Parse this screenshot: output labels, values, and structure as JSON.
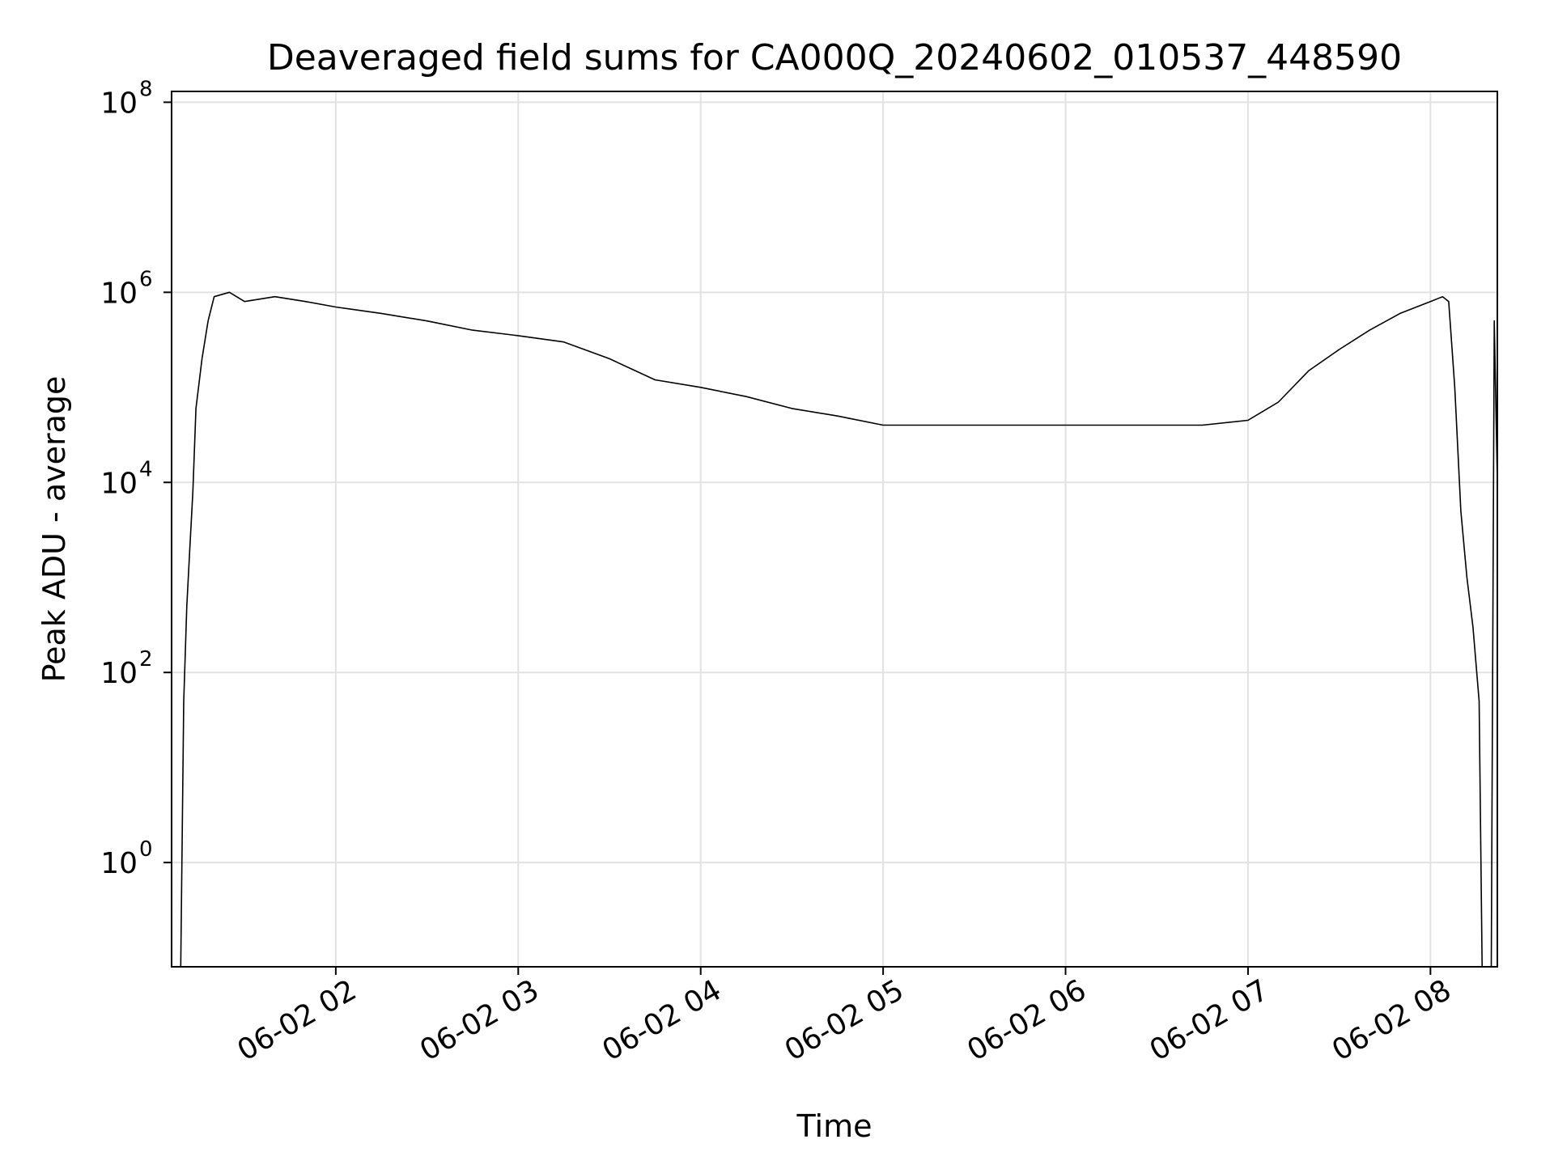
{
  "chart_data": {
    "type": "line",
    "title": "Deaveraged field sums for CA000Q_20240602_010537_448590",
    "xlabel": "Time",
    "ylabel": "Peak ADU - average",
    "yscale": "log",
    "grid": true,
    "xlim": [
      "2024-06-02 01:06",
      "2024-06-02 08:22"
    ],
    "ylim": [
      0.08,
      130000000
    ],
    "x_ticks": [
      {
        "value": "2024-06-02 02:00",
        "label": "06-02 02"
      },
      {
        "value": "2024-06-02 03:00",
        "label": "06-02 03"
      },
      {
        "value": "2024-06-02 04:00",
        "label": "06-02 04"
      },
      {
        "value": "2024-06-02 05:00",
        "label": "06-02 05"
      },
      {
        "value": "2024-06-02 06:00",
        "label": "06-02 06"
      },
      {
        "value": "2024-06-02 07:00",
        "label": "06-02 07"
      },
      {
        "value": "2024-06-02 08:00",
        "label": "06-02 08"
      }
    ],
    "y_ticks": [
      {
        "value": 1,
        "base": "10",
        "exp": "0"
      },
      {
        "value": 100,
        "base": "10",
        "exp": "2"
      },
      {
        "value": 10000,
        "base": "10",
        "exp": "4"
      },
      {
        "value": 1000000,
        "base": "10",
        "exp": "6"
      },
      {
        "value": 100000000,
        "base": "10",
        "exp": "8"
      }
    ],
    "line_color": "#000000",
    "series": [
      {
        "x": [
          "2024-06-02 01:09",
          "2024-06-02 01:10",
          "2024-06-02 01:11",
          "2024-06-02 01:12",
          "2024-06-02 01:13",
          "2024-06-02 01:14",
          "2024-06-02 01:16",
          "2024-06-02 01:18",
          "2024-06-02 01:20",
          "2024-06-02 01:25",
          "2024-06-02 01:30",
          "2024-06-02 01:40",
          "2024-06-02 01:50",
          "2024-06-02 02:00",
          "2024-06-02 02:15",
          "2024-06-02 02:30",
          "2024-06-02 02:45",
          "2024-06-02 03:00",
          "2024-06-02 03:15",
          "2024-06-02 03:30",
          "2024-06-02 03:45",
          "2024-06-02 04:00",
          "2024-06-02 04:15",
          "2024-06-02 04:30",
          "2024-06-02 04:45",
          "2024-06-02 05:00",
          "2024-06-02 05:15",
          "2024-06-02 05:30",
          "2024-06-02 05:34",
          "2024-06-02 05:45",
          "2024-06-02 06:00",
          "2024-06-02 06:15",
          "2024-06-02 06:30",
          "2024-06-02 06:45",
          "2024-06-02 07:00",
          "2024-06-02 07:10",
          "2024-06-02 07:20",
          "2024-06-02 07:30",
          "2024-06-02 07:40",
          "2024-06-02 07:50",
          "2024-06-02 08:00",
          "2024-06-02 08:04",
          "2024-06-02 08:06",
          "2024-06-02 08:08",
          "2024-06-02 08:10",
          "2024-06-02 08:12",
          "2024-06-02 08:14",
          "2024-06-02 08:16",
          "2024-06-02 08:17",
          "2024-06-02 08:20",
          "2024-06-02 08:21",
          "2024-06-02 08:22"
        ],
        "values": [
          0.08,
          50,
          500,
          2000,
          8000,
          60000,
          200000,
          500000,
          900000,
          1000000,
          800000,
          900000,
          800000,
          700000,
          600000,
          500000,
          400000,
          350000,
          300000,
          200000,
          120000,
          100000,
          80000,
          60000,
          50000,
          40000,
          40000,
          40000,
          40000,
          40000,
          40000,
          40000,
          40000,
          40000,
          45000,
          70000,
          150000,
          250000,
          400000,
          600000,
          800000,
          900000,
          800000,
          100000,
          5000,
          1000,
          300,
          50,
          0.08,
          0.08,
          500000,
          10000
        ]
      }
    ]
  }
}
